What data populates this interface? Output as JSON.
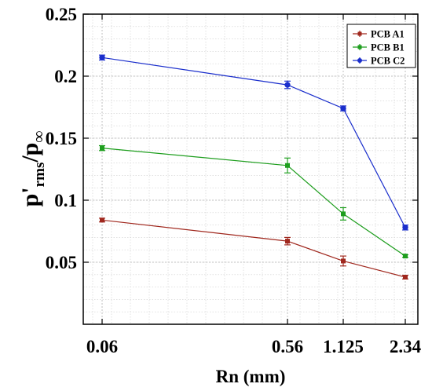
{
  "chart_data": {
    "type": "line",
    "xlabel": "Rn (mm)",
    "ylabel": {
      "main": "p'",
      "sub1": "rms",
      "slash": "/p",
      "sub2": "∞"
    },
    "x": [
      "0.06",
      "0.56",
      "1.125",
      "2.34"
    ],
    "x_scale": "categorical (unequally spaced as in the original)",
    "ylim": [
      0,
      0.25
    ],
    "yticks": [
      "0.05",
      "0.1",
      "0.15",
      "0.2",
      "0.25"
    ],
    "grid": true,
    "legend_position": "top-right",
    "error_bars": true,
    "series": [
      {
        "name": "PCB A1",
        "color": "#a0281e",
        "values": [
          0.084,
          0.067,
          0.051,
          0.038
        ],
        "errors": [
          0.0015,
          0.003,
          0.004,
          0.0015
        ]
      },
      {
        "name": "PCB B1",
        "color": "#1e9e1e",
        "values": [
          0.142,
          0.128,
          0.089,
          0.055
        ],
        "errors": [
          0.002,
          0.006,
          0.005,
          0.001
        ]
      },
      {
        "name": "PCB C2",
        "color": "#1a2ecc",
        "values": [
          0.215,
          0.193,
          0.174,
          0.078
        ],
        "errors": [
          0.002,
          0.003,
          0.002,
          0.002
        ]
      }
    ]
  }
}
